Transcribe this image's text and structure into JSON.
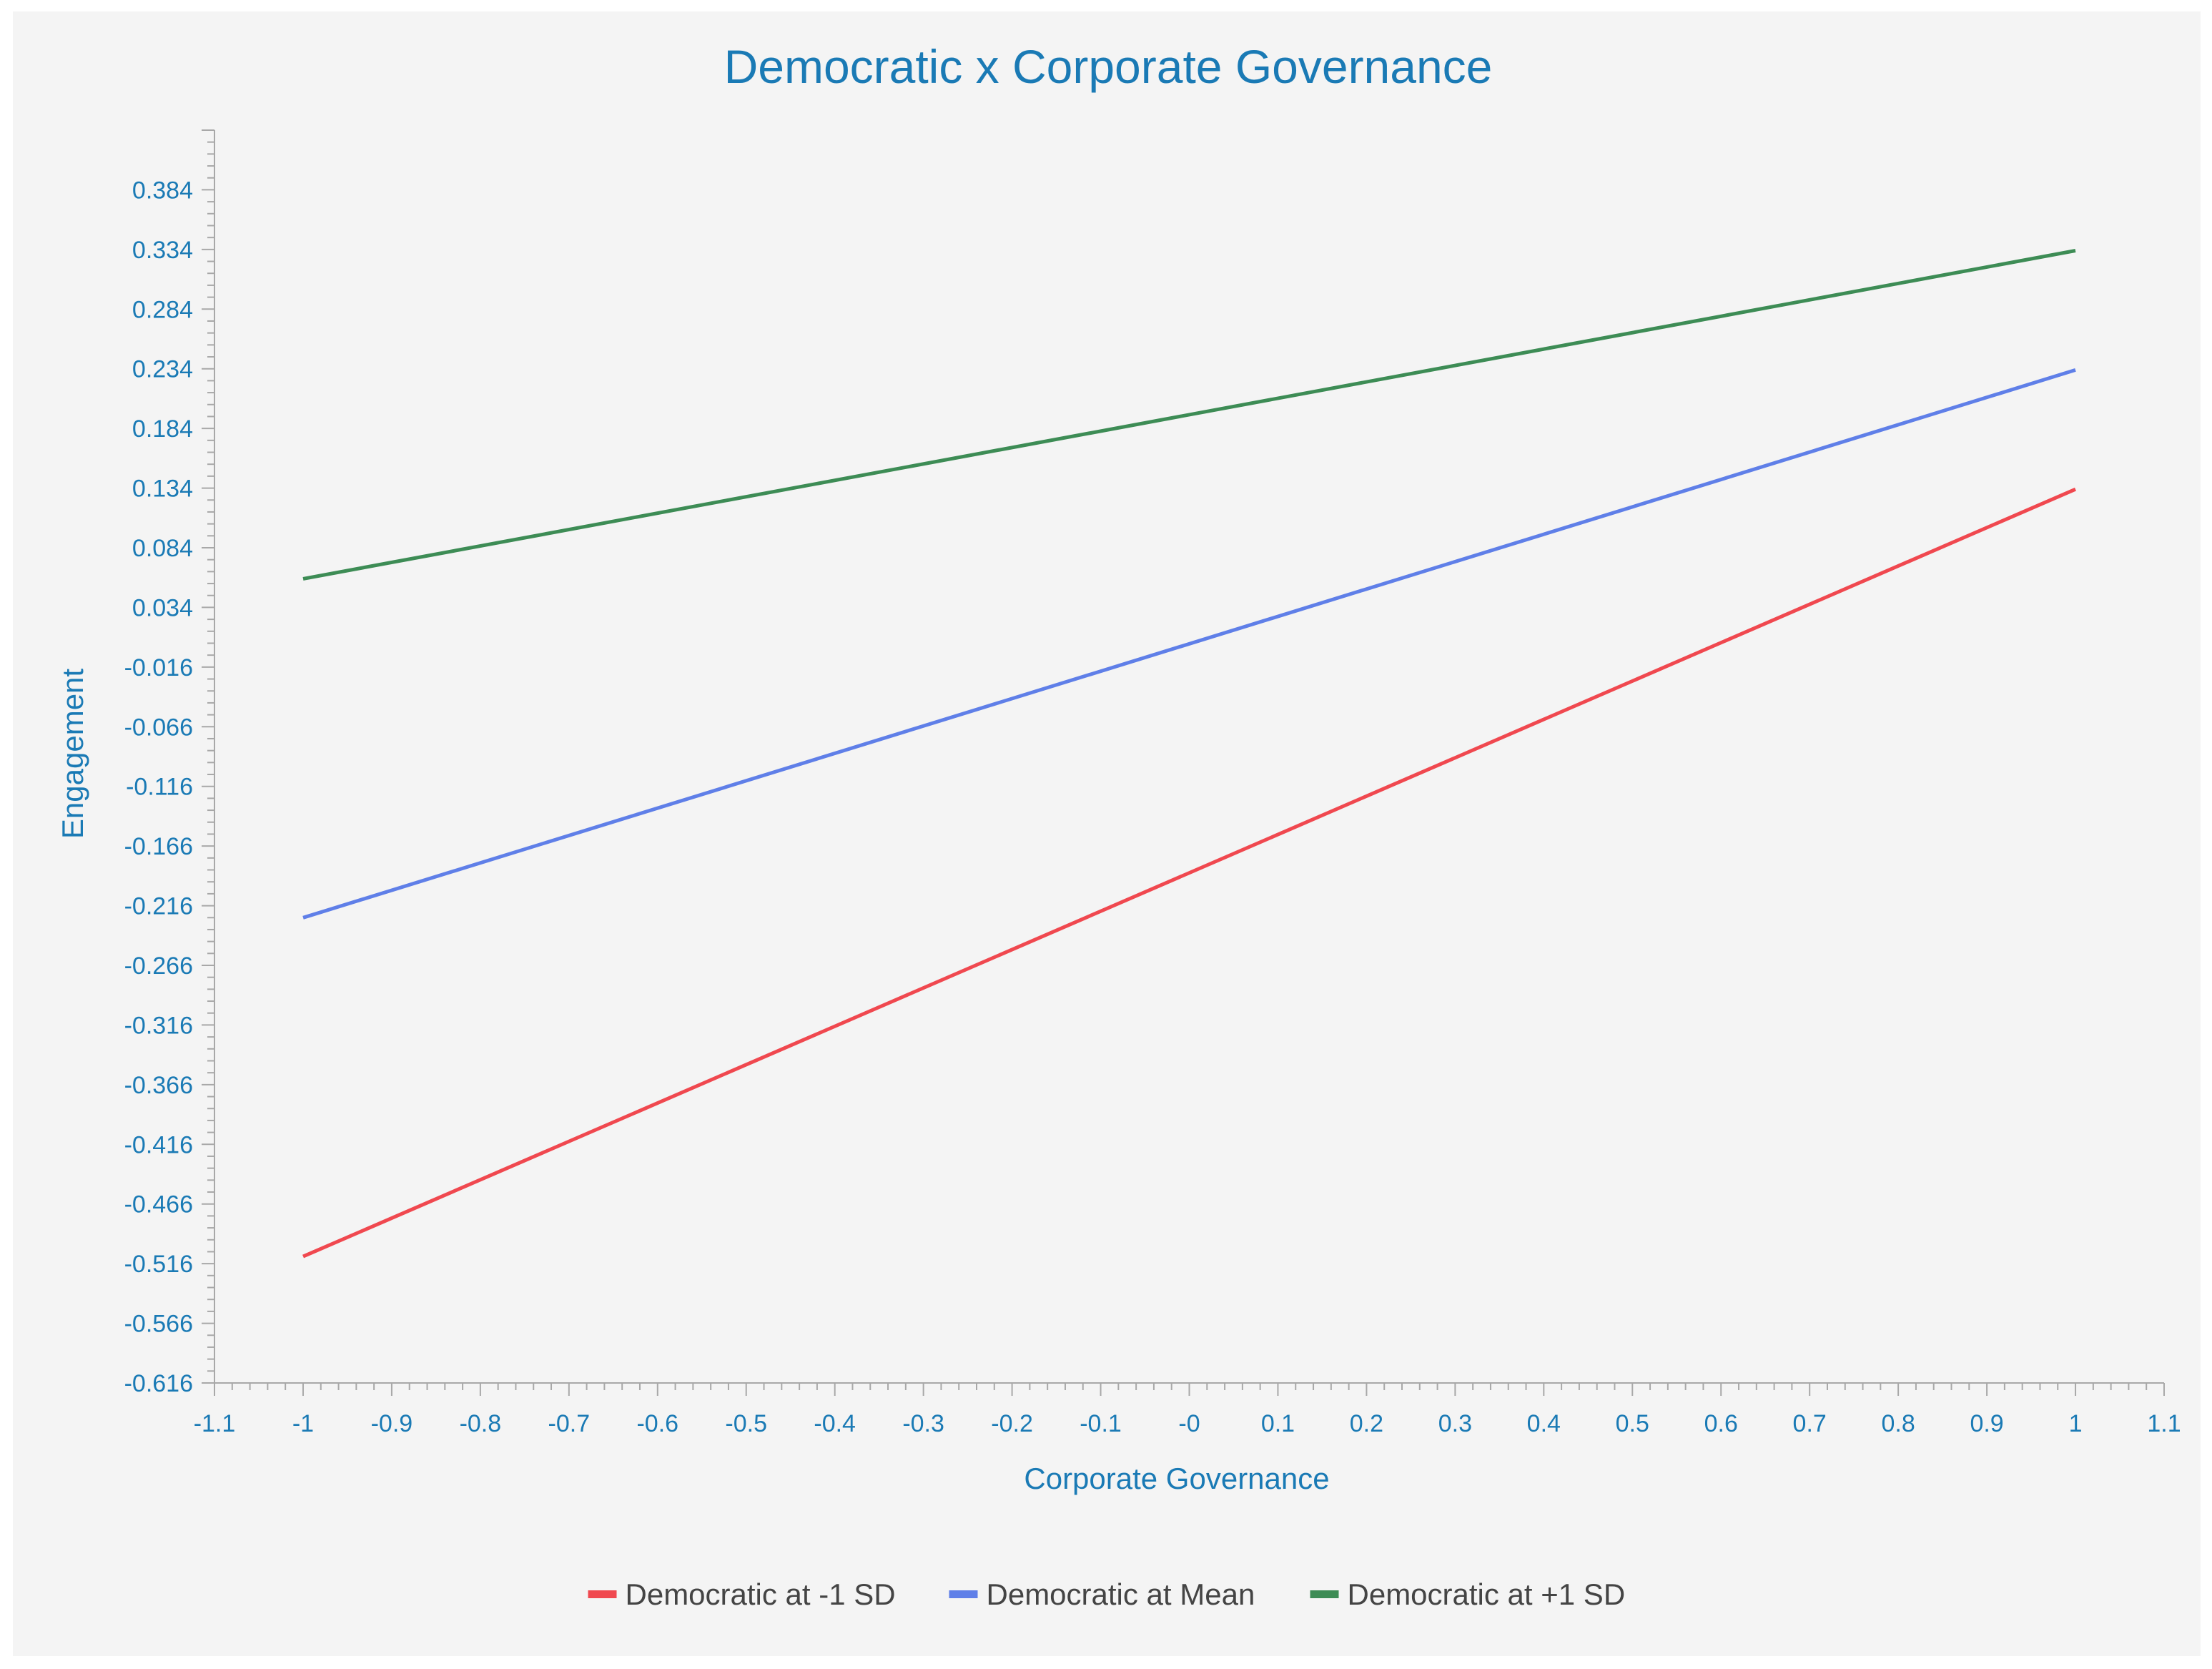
{
  "chart_data": {
    "type": "line",
    "title": "Democratic x Corporate Governance",
    "xlabel": "Corporate Governance",
    "ylabel": "Engagement",
    "xlim": [
      -1.1,
      1.1
    ],
    "ylim": [
      -0.616,
      0.434
    ],
    "x_ticks": [
      -1.1,
      -1,
      -0.9,
      -0.8,
      -0.7,
      -0.6,
      -0.5,
      -0.4,
      -0.3,
      -0.2,
      -0.1,
      0,
      0.1,
      0.2,
      0.3,
      0.4,
      0.5,
      0.6,
      0.7,
      0.8,
      0.9,
      1,
      1.1
    ],
    "x_tick_labels": [
      "-1.1",
      "-1",
      "-0.9",
      "-0.8",
      "-0.7",
      "-0.6",
      "-0.5",
      "-0.4",
      "-0.3",
      "-0.2",
      "-0.1",
      "-0",
      "0.1",
      "0.2",
      "0.3",
      "0.4",
      "0.5",
      "0.6",
      "0.7",
      "0.8",
      "0.9",
      "1",
      "1.1"
    ],
    "y_ticks": [
      0.384,
      0.334,
      0.284,
      0.234,
      0.184,
      0.134,
      0.084,
      0.034,
      -0.016,
      -0.066,
      -0.116,
      -0.166,
      -0.216,
      -0.266,
      -0.316,
      -0.366,
      -0.416,
      -0.466,
      -0.516,
      -0.566,
      -0.616
    ],
    "y_tick_labels": [
      "0.384",
      "0.334",
      "0.284",
      "0.234",
      "0.184",
      "0.134",
      "0.084",
      "0.034",
      "-0.016",
      "-0.066",
      "-0.116",
      "-0.166",
      "-0.216",
      "-0.266",
      "-0.316",
      "-0.366",
      "-0.416",
      "-0.466",
      "-0.516",
      "-0.566",
      "-0.616"
    ],
    "legend_position": "bottom-center",
    "grid": false,
    "series": [
      {
        "name": "Democratic at -1 SD",
        "color": "#f0484f",
        "x": [
          -1,
          1
        ],
        "y": [
          -0.51,
          0.133
        ]
      },
      {
        "name": "Democratic at Mean",
        "color": "#5f7fe8",
        "x": [
          -1,
          1
        ],
        "y": [
          -0.226,
          0.233
        ]
      },
      {
        "name": "Democratic at +1 SD",
        "color": "#3d8c55",
        "x": [
          -1,
          1
        ],
        "y": [
          0.058,
          0.333
        ]
      }
    ]
  }
}
